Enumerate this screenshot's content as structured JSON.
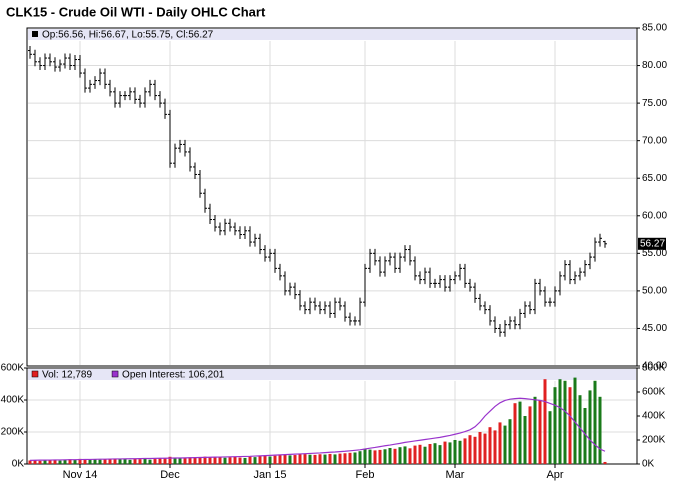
{
  "title": "CLK15 - Crude Oil WTI - Daily OHLC Chart",
  "chart_data": [
    {
      "type": "ohlc",
      "legend_text": "Op:56.56, Hi:56.67, Lo:55.75, Cl:56.27",
      "color": "#000000",
      "open": [
        82,
        81.5,
        80.5,
        80,
        81,
        80.5,
        79.8,
        80.2,
        81,
        80,
        80.8,
        79,
        77,
        77.5,
        78,
        79,
        77.5,
        76.5,
        75,
        76,
        76,
        76.5,
        75.5,
        75,
        76.5,
        77.5,
        76,
        75,
        73.5,
        67,
        69,
        69.5,
        68.5,
        66.5,
        65.5,
        63,
        61,
        59.5,
        58.5,
        58,
        59,
        58.5,
        58,
        57.5,
        58,
        56.5,
        57,
        55.5,
        54.5,
        55,
        53,
        52,
        50,
        50.5,
        49.5,
        48,
        47.5,
        48.5,
        48,
        47.5,
        48,
        47,
        48.5,
        48,
        46.5,
        46,
        46,
        48.5,
        53,
        55,
        54,
        52.5,
        54,
        54.5,
        53,
        54.5,
        55.5,
        54,
        52,
        51.5,
        52.5,
        51,
        51,
        51.5,
        50.5,
        51.5,
        52,
        53,
        51,
        50.5,
        49,
        48,
        47.5,
        46,
        45,
        44.5,
        45.5,
        46,
        45.5,
        47,
        48,
        47.5,
        51,
        50,
        48.5,
        48.5,
        50,
        52,
        53.5,
        51.5,
        52,
        52.5,
        53.5,
        54.5,
        56.5,
        56.56
      ],
      "high": [
        82.6,
        82.1,
        81.1,
        81.6,
        81.6,
        81.1,
        80.8,
        81.6,
        81.6,
        81.4,
        81.4,
        79.6,
        78.1,
        78.6,
        79.6,
        79.6,
        78.1,
        77.1,
        76.6,
        76.6,
        77.1,
        77.1,
        76.1,
        77.1,
        78.1,
        78.1,
        76.6,
        75.6,
        74.1,
        69.6,
        70.1,
        70.1,
        69.1,
        67.1,
        66.1,
        63.6,
        61.6,
        60.1,
        59.1,
        59.6,
        59.6,
        59.1,
        58.6,
        58.6,
        58.6,
        57.6,
        57.6,
        56.1,
        55.6,
        55.6,
        53.6,
        52.6,
        51.1,
        51.1,
        50.1,
        48.6,
        49.1,
        49.1,
        48.6,
        48.6,
        48.6,
        49.1,
        49.1,
        48.6,
        47.1,
        46.6,
        49.1,
        53.6,
        55.6,
        55.6,
        54.6,
        54.6,
        55.1,
        55.1,
        55.1,
        56.1,
        56.1,
        54.6,
        52.6,
        53.1,
        53.1,
        51.6,
        52.1,
        52.1,
        52.1,
        52.6,
        53.6,
        53.6,
        51.6,
        51.1,
        49.6,
        48.6,
        48.1,
        46.6,
        45.6,
        46.1,
        46.6,
        46.6,
        47.6,
        48.6,
        48.6,
        51.6,
        51.6,
        50.6,
        49.1,
        50.6,
        52.6,
        54.1,
        54.1,
        52.6,
        53.1,
        54.1,
        55.1,
        57.1,
        57.6,
        56.67
      ],
      "low": [
        80.9,
        79.9,
        79.4,
        79.4,
        79.9,
        79.2,
        79.2,
        79.6,
        79.4,
        79.4,
        78.4,
        76.4,
        76.4,
        76.9,
        77.4,
        76.9,
        75.9,
        74.4,
        74.4,
        75.4,
        75.4,
        74.9,
        74.4,
        74.4,
        75.9,
        75.4,
        74.4,
        72.9,
        66.4,
        66.4,
        68.4,
        67.9,
        65.9,
        64.9,
        62.4,
        60.4,
        58.9,
        57.9,
        57.4,
        57.4,
        57.9,
        57.4,
        56.9,
        56.9,
        55.9,
        55.9,
        54.9,
        53.9,
        53.9,
        52.4,
        51.4,
        49.4,
        49.4,
        48.9,
        47.4,
        46.9,
        46.9,
        47.4,
        46.9,
        46.9,
        46.4,
        46.4,
        47.4,
        45.9,
        45.4,
        45.4,
        45.4,
        47.9,
        52.4,
        53.4,
        51.9,
        51.9,
        53.4,
        52.4,
        52.4,
        53.9,
        53.4,
        51.4,
        50.9,
        50.9,
        50.4,
        50.4,
        50.4,
        49.9,
        49.9,
        50.9,
        51.4,
        50.4,
        49.9,
        48.4,
        47.4,
        46.9,
        45.4,
        44.4,
        43.9,
        43.9,
        44.9,
        44.9,
        44.9,
        46.4,
        46.9,
        46.9,
        49.4,
        47.9,
        47.9,
        47.9,
        49.4,
        51.4,
        50.9,
        50.9,
        51.4,
        51.9,
        52.9,
        53.9,
        55.9,
        55.75
      ],
      "close": [
        81.5,
        80.5,
        80,
        81,
        80.5,
        79.8,
        80.2,
        81,
        80,
        80.8,
        79,
        77,
        77.5,
        78,
        79,
        77.5,
        76.5,
        75,
        76,
        76,
        76.5,
        75.5,
        75,
        76.5,
        77.5,
        76,
        75,
        73.5,
        67,
        69,
        69.5,
        68.5,
        66.5,
        65.5,
        63,
        61,
        59.5,
        58.5,
        58,
        59,
        58.5,
        58,
        57.5,
        58,
        56.5,
        57,
        55.5,
        54.5,
        55,
        53,
        52,
        50,
        50.5,
        49.5,
        48,
        47.5,
        48.5,
        48,
        47.5,
        48,
        47,
        48.5,
        48,
        46.5,
        46,
        46,
        48.5,
        53,
        55,
        54,
        52.5,
        54,
        54.5,
        53,
        54.5,
        55.5,
        54,
        52,
        51.5,
        52.5,
        51,
        51,
        51.5,
        50.5,
        51.5,
        52,
        53,
        51,
        50.5,
        49,
        48,
        47.5,
        46,
        45,
        44.5,
        45.5,
        46,
        45.5,
        47,
        48,
        47.5,
        51,
        50,
        48.5,
        48.5,
        50,
        52,
        53.5,
        51.5,
        52,
        52.5,
        53.5,
        54.5,
        56.5,
        57,
        56.27
      ],
      "ylim": [
        40,
        85
      ],
      "yticks": [
        {
          "value": 40,
          "label": "40.00"
        },
        {
          "value": 45,
          "label": "45.00"
        },
        {
          "value": 50,
          "label": "50.00"
        },
        {
          "value": 55,
          "label": "55.00"
        },
        {
          "value": 60,
          "label": "60.00"
        },
        {
          "value": 65,
          "label": "65.00"
        },
        {
          "value": 70,
          "label": "70.00"
        },
        {
          "value": 75,
          "label": "75.00"
        },
        {
          "value": 80,
          "label": "80.00"
        },
        {
          "value": 85,
          "label": "85.00"
        }
      ],
      "grid": true
    },
    {
      "type": "bar",
      "legend": [
        "Vol: 12,789",
        "Open Interest: 106,201"
      ],
      "legend_colors": [
        "#e02020",
        "#9933cc"
      ],
      "categories": [
        null,
        null,
        null,
        null,
        null,
        null,
        null,
        null,
        null,
        null,
        "Nov 14",
        null,
        null,
        null,
        null,
        null,
        null,
        null,
        null,
        null,
        null,
        null,
        null,
        null,
        null,
        null,
        null,
        null,
        "Dec",
        null,
        null,
        null,
        null,
        null,
        null,
        null,
        null,
        null,
        null,
        null,
        null,
        null,
        null,
        null,
        null,
        null,
        null,
        null,
        "Jan 15",
        null,
        null,
        null,
        null,
        null,
        null,
        null,
        null,
        null,
        null,
        null,
        null,
        null,
        null,
        null,
        null,
        null,
        null,
        "Feb",
        null,
        null,
        null,
        null,
        null,
        null,
        null,
        null,
        null,
        null,
        null,
        null,
        null,
        null,
        null,
        null,
        null,
        "Mar",
        null,
        null,
        null,
        null,
        null,
        null,
        null,
        null,
        null,
        null,
        null,
        null,
        null,
        null,
        null,
        null,
        null,
        null,
        null,
        "Apr",
        null,
        null,
        null,
        null,
        null,
        null,
        null,
        null,
        null,
        null
      ],
      "up_color": "#1a7a1a",
      "down_color": "#e02020",
      "values": [
        22000,
        25000,
        20000,
        28000,
        24000,
        26000,
        21000,
        27000,
        30000,
        25000,
        32000,
        28000,
        26000,
        30000,
        27000,
        29000,
        33000,
        31000,
        28000,
        30000,
        26000,
        32000,
        30000,
        34000,
        27000,
        31000,
        35000,
        38000,
        45000,
        40000,
        36000,
        38000,
        42000,
        40000,
        44000,
        46000,
        43000,
        41000,
        45000,
        39000,
        42000,
        44000,
        40000,
        38000,
        46000,
        43000,
        48000,
        50000,
        47000,
        52000,
        55000,
        58000,
        54000,
        56000,
        60000,
        62000,
        58000,
        57000,
        61000,
        59000,
        63000,
        60000,
        65000,
        67000,
        70000,
        72000,
        80000,
        95000,
        90000,
        85000,
        88000,
        92000,
        100000,
        95000,
        105000,
        110000,
        98000,
        115000,
        120000,
        108000,
        125000,
        130000,
        118000,
        140000,
        135000,
        150000,
        145000,
        160000,
        180000,
        170000,
        200000,
        190000,
        230000,
        210000,
        260000,
        240000,
        280000,
        380000,
        390000,
        300000,
        360000,
        420000,
        400000,
        530000,
        330000,
        480000,
        530000,
        520000,
        480000,
        540000,
        430000,
        350000,
        460000,
        520000,
        420000,
        12789
      ],
      "ylim": [
        0,
        600000
      ],
      "yticks": [
        {
          "value": 0,
          "label": "0K"
        },
        {
          "value": 200000,
          "label": "200K"
        },
        {
          "value": 400000,
          "label": "400K"
        },
        {
          "value": 600000,
          "label": "600K"
        }
      ],
      "series": [
        {
          "color": "#9933cc",
          "axis": "y2",
          "values": [
            30000,
            31000,
            32000,
            32000,
            33000,
            34000,
            34000,
            35000,
            36000,
            36000,
            37000,
            38000,
            38000,
            39000,
            40000,
            40000,
            41000,
            42000,
            42000,
            43000,
            44000,
            44000,
            45000,
            46000,
            46000,
            47000,
            48000,
            48000,
            49000,
            50000,
            50000,
            51000,
            52000,
            53000,
            54000,
            55000,
            56000,
            57000,
            58000,
            59000,
            60000,
            61000,
            62000,
            63000,
            64000,
            66000,
            68000,
            70000,
            72000,
            74000,
            76000,
            78000,
            80000,
            82000,
            84000,
            86000,
            88000,
            90000,
            92000,
            95000,
            98000,
            100000,
            103000,
            106000,
            110000,
            114000,
            118000,
            125000,
            132000,
            138000,
            145000,
            152000,
            158000,
            165000,
            172000,
            180000,
            186000,
            192000,
            198000,
            204000,
            210000,
            216000,
            222000,
            230000,
            238000,
            248000,
            258000,
            270000,
            285000,
            310000,
            350000,
            400000,
            440000,
            480000,
            510000,
            530000,
            540000,
            545000,
            548000,
            545000,
            540000,
            535000,
            530000,
            520000,
            505000,
            490000,
            470000,
            440000,
            400000,
            350000,
            300000,
            250000,
            200000,
            160000,
            125000,
            106201
          ]
        }
      ],
      "y2lim": [
        0,
        800000
      ],
      "y2ticks": [
        {
          "value": 0,
          "label": "0K"
        },
        {
          "value": 200000,
          "label": "200K"
        },
        {
          "value": 400000,
          "label": "400K"
        },
        {
          "value": 600000,
          "label": "600K"
        },
        {
          "value": 800000,
          "label": "800K"
        }
      ],
      "grid": true
    }
  ]
}
